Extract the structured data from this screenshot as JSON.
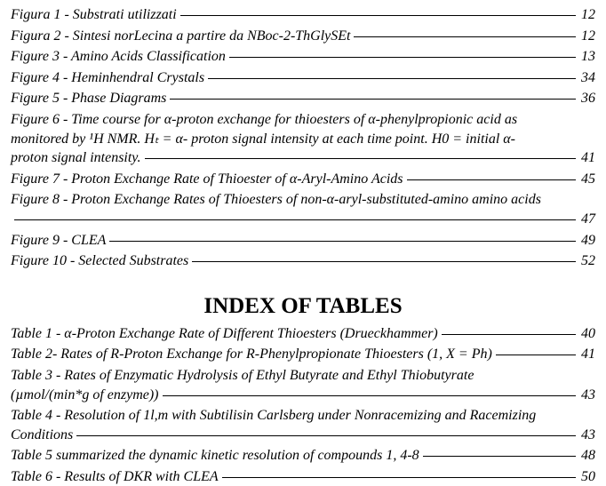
{
  "figures": [
    {
      "label": "Figura 1 - Substrati utilizzati",
      "page": "12"
    },
    {
      "label": "Figura 2 - Sintesi norLecina a partire da NBoc-2-ThGlySEt",
      "page": "12"
    },
    {
      "label": "Figure 3 - Amino Acids Classification",
      "page": "13"
    },
    {
      "label": "Figure 4 - Heminhendral Crystals",
      "page": "34"
    },
    {
      "label": "Figure 5 - Phase Diagrams",
      "page": "36"
    },
    {
      "lines": [
        "Figure 6 - Time course for α-proton exchange for thioesters of α-phenylpropionic acid as",
        "monitored by ¹H NMR. Hₜ = α- proton signal intensity at each time point. H0 = initial α-"
      ],
      "lastLine": "proton signal intensity.",
      "page": "41"
    },
    {
      "label": "Figure 7 - Proton Exchange Rate of Thioester of α-Aryl-Amino Acids",
      "page": "45"
    },
    {
      "lines": [
        "Figure 8 - Proton Exchange Rates of Thioesters of non-α-aryl-substituted-amino amino acids"
      ],
      "lastLine": "",
      "page": "47"
    },
    {
      "label": "Figure 9 - CLEA",
      "page": "49"
    },
    {
      "label": "Figure 10 - Selected Substrates",
      "page": "52"
    }
  ],
  "tablesHeading": "INDEX OF TABLES",
  "tables": [
    {
      "label": "Table 1 - α-Proton Exchange Rate of Different Thioesters (Drueckhammer)",
      "page": "40"
    },
    {
      "label": "Table 2- Rates of R-Proton Exchange for R-Phenylpropionate Thioesters (1, X = Ph)",
      "page": "41"
    },
    {
      "lines": [
        "Table 3 - Rates of Enzymatic Hydrolysis of Ethyl Butyrate and Ethyl Thiobutyrate"
      ],
      "lastLine": "(µmol/(min*g of enzyme))",
      "page": "43"
    },
    {
      "lines": [
        "Table 4 - Resolution of 1l,m with Subtilisin Carlsberg under Nonracemizing and Racemizing"
      ],
      "lastLine": "Conditions",
      "page": "43"
    },
    {
      "label": "Table 5 summarized the dynamic kinetic resolution of compounds 1, 4-8",
      "page": "48"
    },
    {
      "label": "Table 6 - Results of DKR with CLEA",
      "page": "50"
    }
  ]
}
